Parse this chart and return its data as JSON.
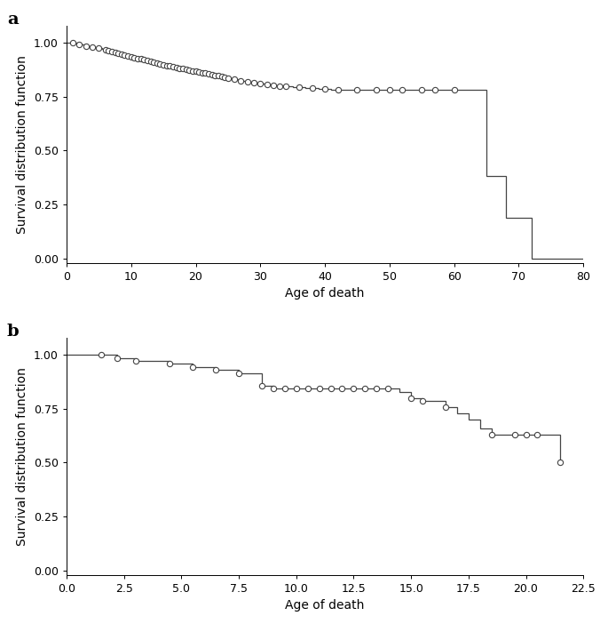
{
  "panel_a": {
    "label": "a",
    "xlabel": "Age of death",
    "ylabel": "Survival distribution function",
    "xlim": [
      0,
      80
    ],
    "ylim": [
      -0.02,
      1.08
    ],
    "xticks": [
      0,
      10,
      20,
      30,
      40,
      50,
      60,
      70,
      80
    ],
    "yticks": [
      0.0,
      0.25,
      0.5,
      0.75,
      1.0
    ],
    "km_times": [
      0,
      1,
      2,
      3,
      4,
      5,
      5.5,
      6,
      6.5,
      7,
      7.5,
      8,
      8.5,
      9,
      9.5,
      10,
      10.5,
      11,
      11.5,
      12,
      12.5,
      13,
      13.5,
      14,
      14.5,
      15,
      15.5,
      16,
      16.5,
      17,
      17.5,
      18,
      18.5,
      19,
      19.5,
      20,
      20.5,
      21,
      21.5,
      22,
      22.5,
      23,
      23.5,
      24,
      24.5,
      25,
      25.5,
      26,
      26.5,
      27,
      27.5,
      28,
      28.5,
      29,
      29.5,
      30,
      30.5,
      31,
      31.5,
      32,
      32.5,
      33,
      34,
      35,
      36,
      37,
      38,
      39,
      40,
      41,
      42,
      43,
      44,
      45,
      46,
      47,
      48,
      49,
      50,
      51,
      52,
      53,
      54,
      55,
      56,
      57,
      58,
      59,
      60,
      65,
      68,
      72,
      80
    ],
    "km_surv": [
      1.0,
      1.0,
      0.99,
      0.985,
      0.98,
      0.975,
      0.97,
      0.966,
      0.963,
      0.96,
      0.956,
      0.952,
      0.948,
      0.944,
      0.94,
      0.936,
      0.932,
      0.928,
      0.924,
      0.92,
      0.916,
      0.912,
      0.908,
      0.904,
      0.9,
      0.897,
      0.894,
      0.891,
      0.888,
      0.885,
      0.882,
      0.879,
      0.876,
      0.873,
      0.87,
      0.867,
      0.864,
      0.861,
      0.858,
      0.855,
      0.852,
      0.849,
      0.846,
      0.843,
      0.84,
      0.837,
      0.834,
      0.831,
      0.828,
      0.825,
      0.822,
      0.82,
      0.818,
      0.816,
      0.814,
      0.812,
      0.81,
      0.808,
      0.806,
      0.804,
      0.802,
      0.8,
      0.798,
      0.796,
      0.793,
      0.79,
      0.788,
      0.786,
      0.784,
      0.782,
      0.781,
      0.78,
      0.78,
      0.78,
      0.78,
      0.78,
      0.78,
      0.78,
      0.78,
      0.78,
      0.78,
      0.78,
      0.78,
      0.78,
      0.78,
      0.78,
      0.78,
      0.78,
      0.78,
      0.38,
      0.19,
      0.0,
      0.0
    ],
    "cens_x": [
      1,
      2,
      3,
      4,
      5,
      6,
      6.5,
      7,
      7.5,
      8,
      8.5,
      9,
      9.5,
      10,
      10.5,
      11,
      11.5,
      12,
      12.5,
      13,
      13.5,
      14,
      14.5,
      15,
      15.5,
      16,
      16.5,
      17,
      17.5,
      18,
      18.5,
      19,
      19.5,
      20,
      20.5,
      21,
      21.5,
      22,
      22.5,
      23,
      23.5,
      24,
      24.5,
      25,
      26,
      27,
      28,
      29,
      30,
      31,
      32,
      33,
      34,
      36,
      38,
      40,
      42,
      45,
      48,
      50,
      52,
      55,
      57,
      60
    ]
  },
  "panel_b": {
    "label": "b",
    "xlabel": "Age of death",
    "ylabel": "Survival distribution function",
    "xlim": [
      0,
      22.5
    ],
    "ylim": [
      -0.02,
      1.08
    ],
    "xticks": [
      0.0,
      2.5,
      5.0,
      7.5,
      10.0,
      12.5,
      15.0,
      17.5,
      20.0,
      22.5
    ],
    "yticks": [
      0.0,
      0.25,
      0.5,
      0.75,
      1.0
    ],
    "km_times": [
      0,
      1.5,
      2.2,
      3.0,
      4.5,
      5.5,
      6.5,
      7.5,
      8.5,
      9.0,
      9.5,
      10.0,
      10.5,
      11.0,
      11.5,
      12.0,
      12.5,
      13.0,
      13.5,
      14.0,
      14.5,
      15.0,
      15.5,
      16.5,
      17.0,
      17.5,
      18.0,
      18.5,
      19.5,
      20.0,
      20.5,
      21.0,
      21.5
    ],
    "km_surv": [
      1.0,
      1.0,
      0.985,
      0.971,
      0.957,
      0.943,
      0.929,
      0.914,
      0.857,
      0.843,
      0.843,
      0.843,
      0.843,
      0.843,
      0.843,
      0.843,
      0.843,
      0.843,
      0.843,
      0.843,
      0.829,
      0.8,
      0.786,
      0.757,
      0.729,
      0.7,
      0.657,
      0.629,
      0.629,
      0.629,
      0.629,
      0.629,
      0.5
    ],
    "cens_x": [
      1.5,
      2.2,
      3.0,
      4.5,
      5.5,
      6.5,
      7.5,
      8.5,
      9.0,
      9.5,
      10.0,
      10.5,
      11.0,
      11.5,
      12.0,
      12.5,
      13.0,
      13.5,
      14.0,
      15.0,
      15.5,
      16.5,
      18.5,
      19.5,
      20.0,
      20.5,
      21.5
    ]
  },
  "line_color": "#444444",
  "marker_color": "#444444",
  "bg_color": "#ffffff",
  "font_size_label": 10,
  "font_size_tick": 9,
  "font_size_panel_label": 14
}
